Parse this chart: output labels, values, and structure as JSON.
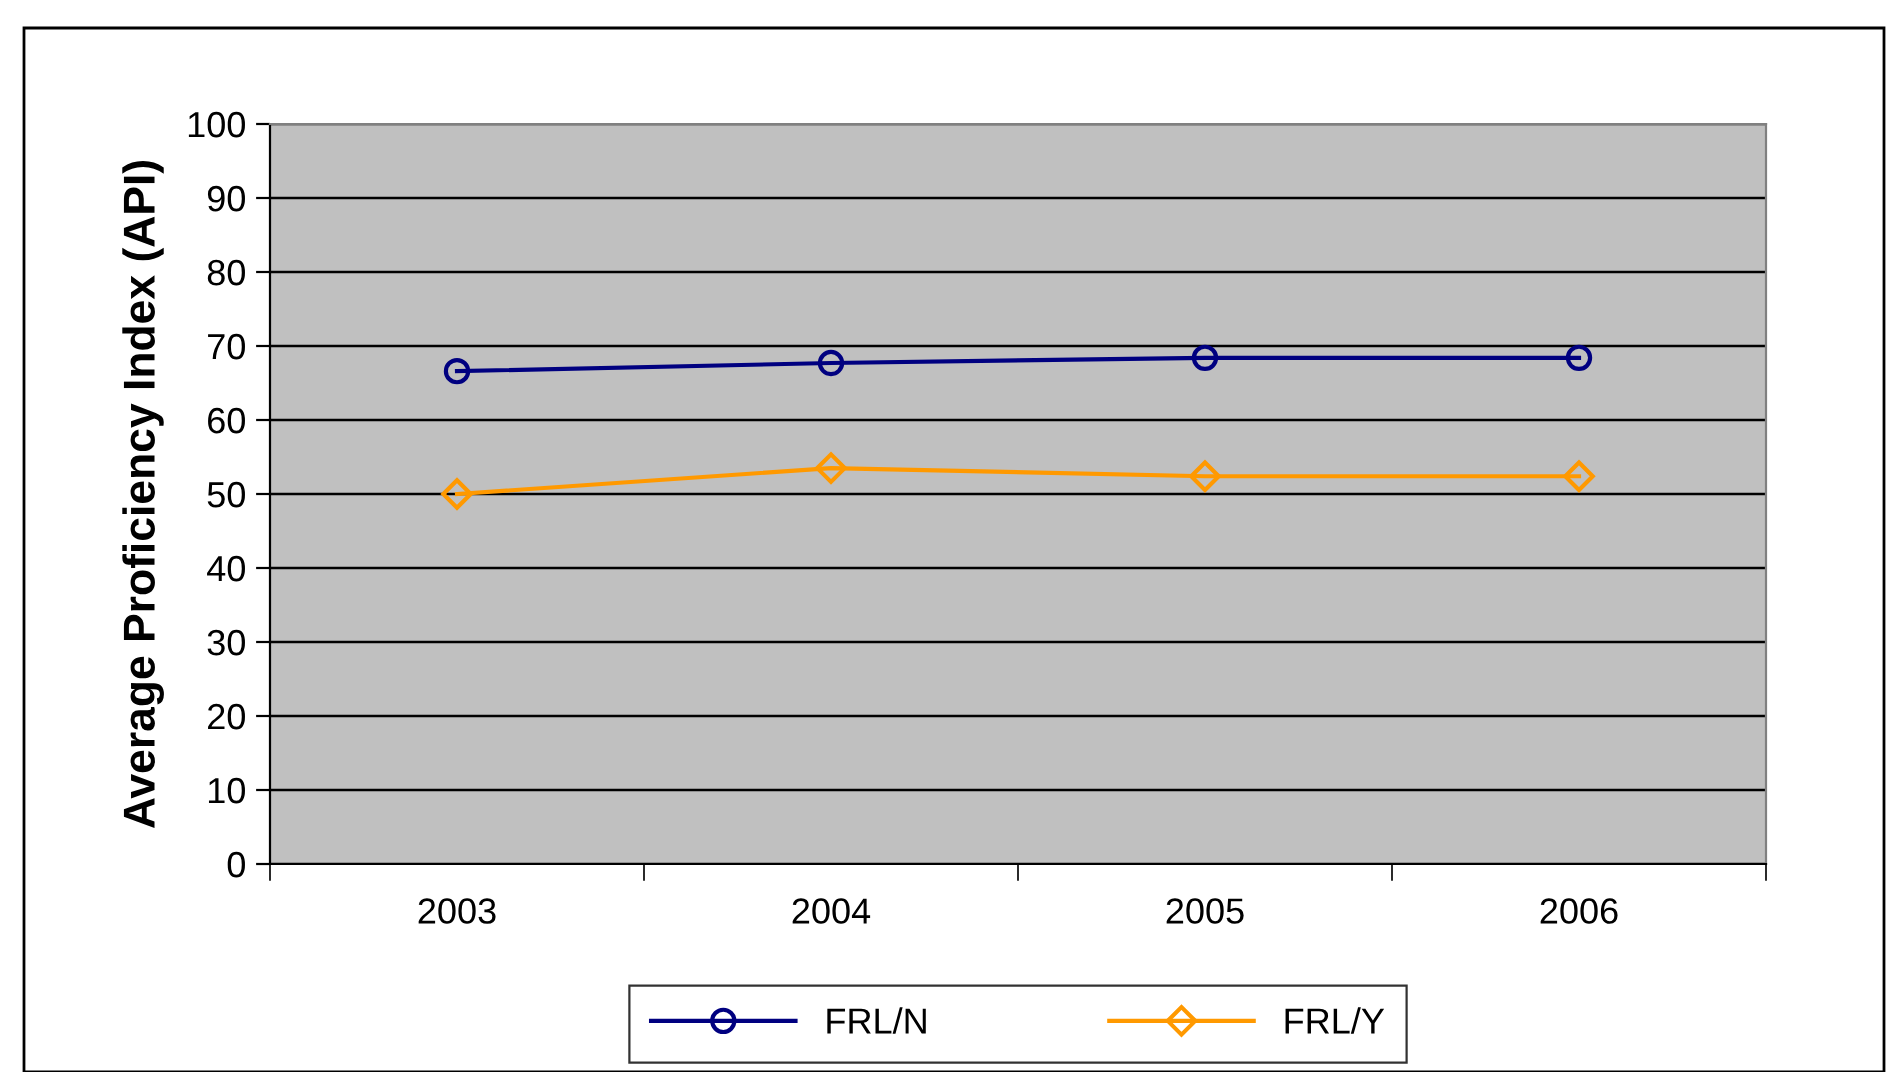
{
  "chart_data": {
    "type": "line",
    "ylabel": "Average Proficiency Index (API)",
    "categories": [
      "2003",
      "2004",
      "2005",
      "2006"
    ],
    "series": [
      {
        "name": "FRL/N",
        "color": "#000080",
        "marker": "circle",
        "values": [
          66.6,
          67.7,
          68.4,
          68.4
        ]
      },
      {
        "name": "FRL/Y",
        "color": "#ff9900",
        "marker": "diamond",
        "values": [
          50,
          53.5,
          52.4,
          52.4
        ]
      }
    ],
    "ylim": [
      0,
      100
    ],
    "yticks": [
      0,
      10,
      20,
      30,
      40,
      50,
      60,
      70,
      80,
      90,
      100
    ],
    "grid": "y",
    "legend": "bottom"
  }
}
